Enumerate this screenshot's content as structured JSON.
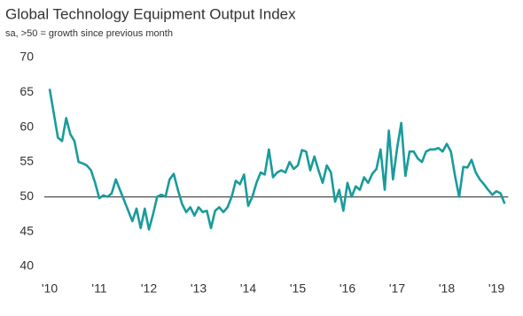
{
  "chart_data": {
    "type": "line",
    "title": "Global Technology Equipment Output Index",
    "subtitle": "sa, >50 = growth since previous month",
    "categories": [
      "'10",
      null,
      null,
      null,
      null,
      null,
      null,
      null,
      null,
      null,
      null,
      null,
      "'11",
      null,
      null,
      null,
      null,
      null,
      null,
      null,
      null,
      null,
      null,
      null,
      "'12",
      null,
      null,
      null,
      null,
      null,
      null,
      null,
      null,
      null,
      null,
      null,
      "'13",
      null,
      null,
      null,
      null,
      null,
      null,
      null,
      null,
      null,
      null,
      null,
      "'14",
      null,
      null,
      null,
      null,
      null,
      null,
      null,
      null,
      null,
      null,
      null,
      "'15",
      null,
      null,
      null,
      null,
      null,
      null,
      null,
      null,
      null,
      null,
      null,
      "'16",
      null,
      null,
      null,
      null,
      null,
      null,
      null,
      null,
      null,
      null,
      null,
      "'17",
      null,
      null,
      null,
      null,
      null,
      null,
      null,
      null,
      null,
      null,
      null,
      "'18",
      null,
      null,
      null,
      null,
      null,
      null,
      null,
      null,
      null,
      null,
      null,
      "'19",
      null,
      null
    ],
    "series": [
      {
        "color": "#1a9b9b",
        "values": [
          65.5,
          62,
          58.5,
          58,
          61.3,
          59,
          58,
          55,
          54.8,
          54.5,
          53.8,
          52,
          49.8,
          50.2,
          50,
          50.5,
          52.5,
          51,
          49.5,
          48,
          46.5,
          48.3,
          45.5,
          48.3,
          45.3,
          47.5,
          50,
          50.3,
          50,
          52.5,
          53.3,
          51,
          49,
          47.8,
          48.5,
          47.3,
          48.5,
          47.8,
          48,
          45.5,
          48,
          48.5,
          47.8,
          48.5,
          50,
          52.3,
          51.8,
          53.2,
          48.7,
          50,
          52,
          53.5,
          53.2,
          56.8,
          52.8,
          53.5,
          53.8,
          53.5,
          55,
          54,
          54.5,
          56.7,
          56.5,
          53.8,
          55.8,
          53.8,
          52,
          54.5,
          53.5,
          49.3,
          51,
          48,
          52,
          50,
          51.5,
          51,
          52.8,
          52,
          53.3,
          54,
          56.8,
          51,
          59.5,
          52.5,
          57,
          60.6,
          53,
          56.5,
          56.5,
          55.5,
          55,
          56.5,
          56.8,
          56.8,
          57,
          56.5,
          57.6,
          56.5,
          53,
          50,
          54.3,
          54.2,
          55.3,
          53.5,
          52.5,
          51.8,
          51,
          50.3,
          50.8,
          50.5,
          49
        ]
      }
    ],
    "ylim": [
      40,
      70
    ],
    "yticks": [
      40,
      45,
      50,
      55,
      60,
      65,
      70
    ],
    "reference_line": 50
  }
}
